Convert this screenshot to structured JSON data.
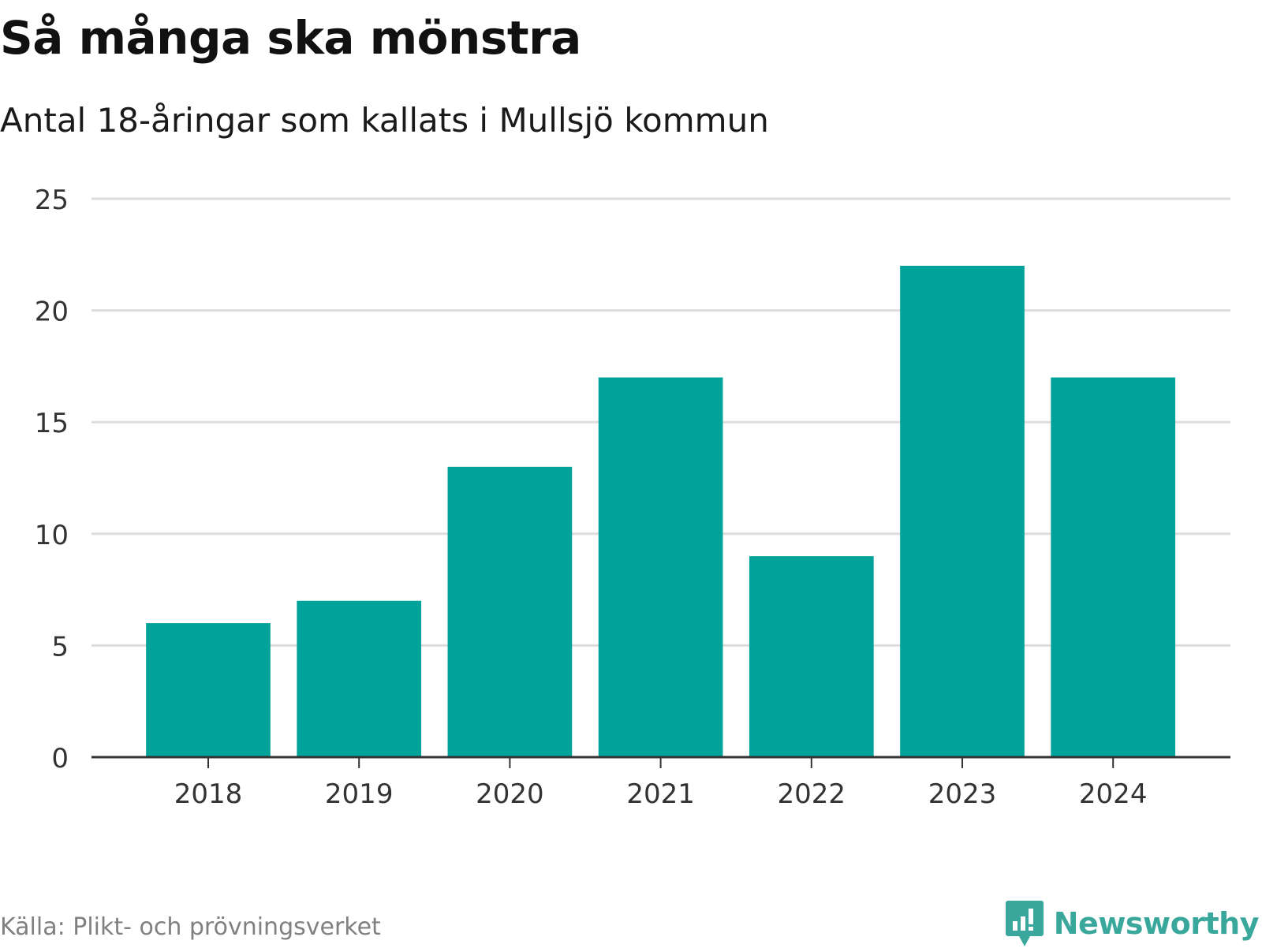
{
  "header": {
    "title": "Så många ska mönstra",
    "subtitle": "Antal 18-åringar som kallats i Mullsjö kommun"
  },
  "footer": {
    "source": "Källa: Plikt- och prövningsverket",
    "brand_name": "Newsworthy",
    "brand_icon": "newsworthy-logo-icon"
  },
  "colors": {
    "bar": "#00a39a",
    "grid": "#dddddd",
    "axis": "#333333",
    "brand": "#3aa79c"
  },
  "chart_data": {
    "type": "bar",
    "title": "Så många ska mönstra",
    "subtitle": "Antal 18-åringar som kallats i Mullsjö kommun",
    "categories": [
      "2018",
      "2019",
      "2020",
      "2021",
      "2022",
      "2023",
      "2024"
    ],
    "values": [
      6,
      7,
      13,
      17,
      9,
      22,
      17
    ],
    "xlabel": "",
    "ylabel": "",
    "ylim": [
      0,
      25
    ],
    "yticks": [
      0,
      5,
      10,
      15,
      20,
      25
    ],
    "grid": true,
    "legend": "none"
  }
}
